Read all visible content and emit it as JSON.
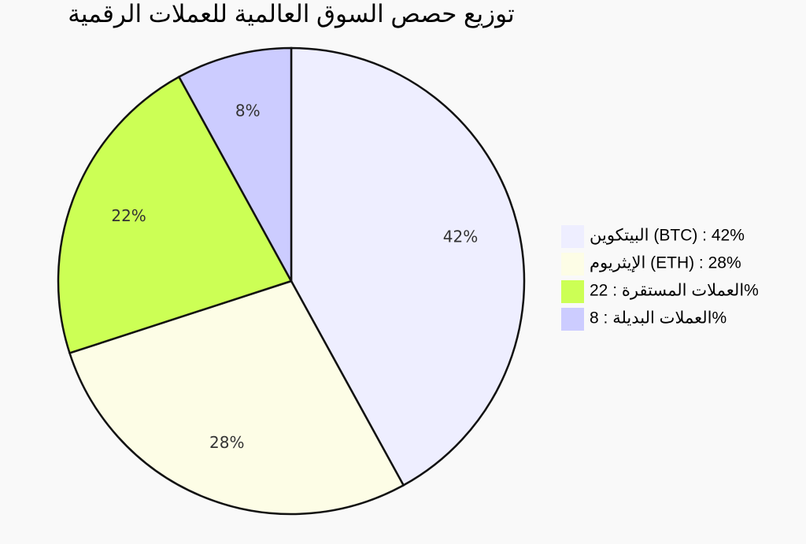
{
  "chart_data": {
    "type": "pie",
    "title": "توزيع حصص السوق العالمية للعملات الرقمية",
    "categories": [
      "البيتكوين (BTC) : 42%",
      "الإيثريوم (ETH) : 28%",
      "العملات المستقرة : 22%",
      "العملات البديلة : 8%"
    ],
    "values": [
      42,
      28,
      22,
      8
    ],
    "value_labels": [
      "42%",
      "28%",
      "22%",
      "8%"
    ],
    "colors": [
      "#eeeeff",
      "#fdfde6",
      "#ccff55",
      "#ccccff"
    ],
    "legend": "right"
  }
}
